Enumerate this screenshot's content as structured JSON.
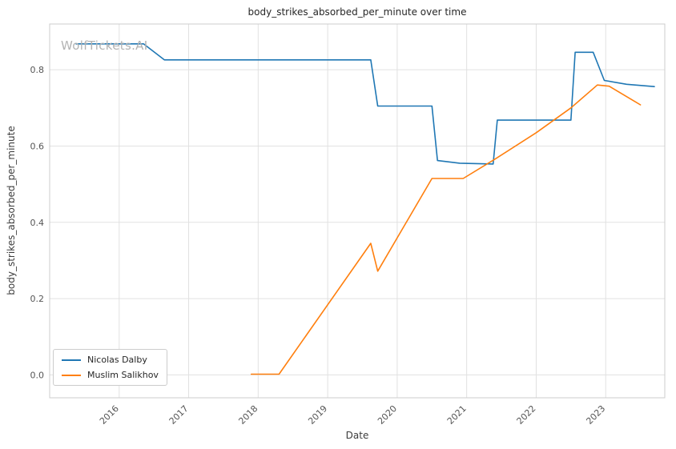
{
  "chart_data": {
    "type": "line",
    "title": "body_strikes_absorbed_per_minute over time",
    "xlabel": "Date",
    "ylabel": "body_strikes_absorbed_per_minute",
    "watermark": "WolfTickets.AI",
    "xlim": [
      2015.0,
      2023.85
    ],
    "ylim": [
      -0.06,
      0.92
    ],
    "xticks": [
      2016,
      2017,
      2018,
      2019,
      2020,
      2021,
      2022,
      2023
    ],
    "yticks": [
      0.0,
      0.2,
      0.4,
      0.6,
      0.8
    ],
    "grid": true,
    "legend_position": "lower left",
    "grid_color": "#e1e1e1",
    "spine_color": "#cccccc",
    "tick_color": "#555555",
    "series": [
      {
        "name": "Nicolas Dalby",
        "color": "#1f77b4",
        "points": [
          [
            2015.38,
            0.868
          ],
          [
            2016.35,
            0.868
          ],
          [
            2016.65,
            0.826
          ],
          [
            2019.62,
            0.826
          ],
          [
            2019.72,
            0.705
          ],
          [
            2020.5,
            0.705
          ],
          [
            2020.58,
            0.562
          ],
          [
            2020.9,
            0.555
          ],
          [
            2021.38,
            0.553
          ],
          [
            2021.44,
            0.668
          ],
          [
            2022.5,
            0.668
          ],
          [
            2022.56,
            0.846
          ],
          [
            2022.82,
            0.846
          ],
          [
            2022.98,
            0.772
          ],
          [
            2023.3,
            0.762
          ],
          [
            2023.7,
            0.756
          ]
        ]
      },
      {
        "name": "Muslim Salikhov",
        "color": "#ff7f0e",
        "points": [
          [
            2017.9,
            0.002
          ],
          [
            2018.3,
            0.002
          ],
          [
            2019.62,
            0.345
          ],
          [
            2019.72,
            0.272
          ],
          [
            2020.5,
            0.515
          ],
          [
            2020.95,
            0.515
          ],
          [
            2021.4,
            0.565
          ],
          [
            2022.0,
            0.635
          ],
          [
            2022.5,
            0.7
          ],
          [
            2022.88,
            0.76
          ],
          [
            2023.05,
            0.757
          ],
          [
            2023.5,
            0.708
          ]
        ]
      }
    ]
  }
}
